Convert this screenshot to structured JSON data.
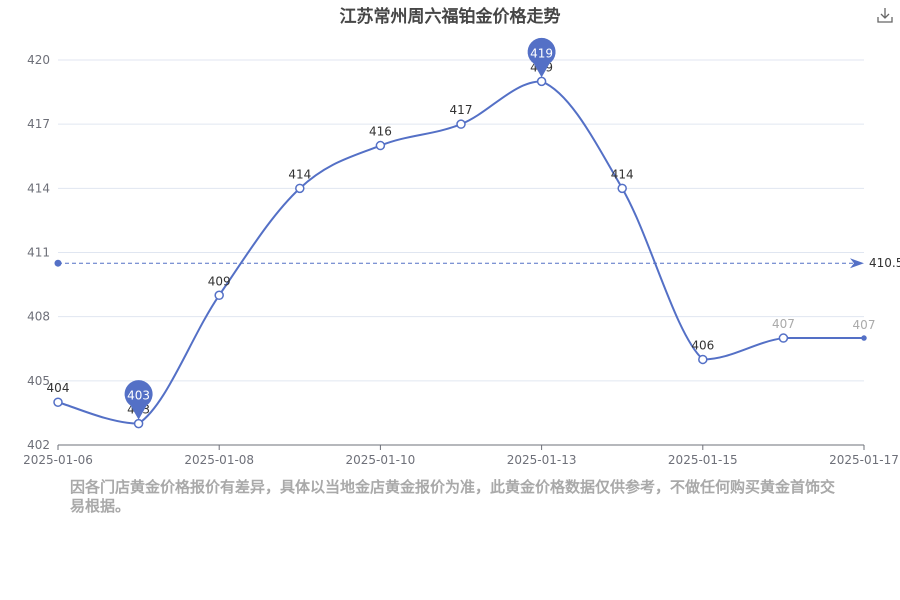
{
  "title": "江苏常州周六福铂金价格走势",
  "toolbar": {
    "download_icon": "download-icon"
  },
  "disclaimer": "因各门店黄金价格报价有差异，具体以当地金店黄金报价为准，此黄金价格数据仅供参考，不做任何购买黄金首饰交易根据。",
  "chart_data": {
    "type": "line",
    "title": "江苏常州周六福铂金价格走势",
    "xlabel": "",
    "ylabel": "",
    "x_ticks": [
      "2025-01-06",
      "2025-01-08",
      "2025-01-10",
      "2025-01-13",
      "2025-01-15",
      "2025-01-17"
    ],
    "y_ticks": [
      "402",
      "405",
      "408",
      "411",
      "414",
      "417",
      "420"
    ],
    "ylim": [
      402,
      420
    ],
    "grid": "horizontal",
    "series": [
      {
        "color": "#5470c6",
        "points": [
          {
            "value": 404,
            "label": "404"
          },
          {
            "value": 403,
            "label": "403"
          },
          {
            "value": 409,
            "label": "409"
          },
          {
            "value": 414,
            "label": "414"
          },
          {
            "value": 416,
            "label": "416"
          },
          {
            "value": 417,
            "label": "417"
          },
          {
            "value": 419,
            "label": "419"
          },
          {
            "value": 414,
            "label": "414"
          },
          {
            "value": 406,
            "label": "406"
          },
          {
            "value": 407,
            "label": "407"
          },
          {
            "value": 407,
            "label": "407"
          }
        ]
      }
    ],
    "mark_points": [
      {
        "type": "max",
        "index": 6,
        "label": "419"
      },
      {
        "type": "min",
        "index": 1,
        "label": "403"
      }
    ],
    "mark_line": {
      "type": "average",
      "value": 410.5,
      "label": "410.5"
    },
    "colors": {
      "line": "#5470c6",
      "grid": "#e0e6f1",
      "axis": "#6e7079"
    }
  }
}
